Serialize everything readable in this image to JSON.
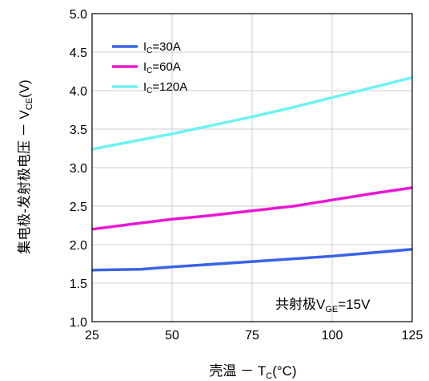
{
  "chart_data": {
    "type": "line",
    "xlabel": {
      "prefix": "壳温 －  T",
      "sub": "C",
      "suffix": "(°C)"
    },
    "ylabel": {
      "prefix": "集电极-发射极电压 －  V",
      "sub": "CE",
      "suffix": "(V)"
    },
    "annotation": {
      "prefix": "共射极V",
      "sub": "GE",
      "suffix": "=15V"
    },
    "xlim": [
      25,
      125
    ],
    "ylim": [
      1.0,
      5.0
    ],
    "xticks": [
      "25",
      "50",
      "75",
      "100",
      "125"
    ],
    "yticks": [
      "1.0",
      "1.5",
      "2.0",
      "2.5",
      "3.0",
      "3.5",
      "4.0",
      "4.5",
      "5.0"
    ],
    "grid": true,
    "legend_position": "top-left",
    "series": [
      {
        "name": {
          "prefix": "I",
          "sub": "C",
          "suffix": "=30A"
        },
        "color": "#3a64e6",
        "x": [
          25,
          40,
          50,
          75,
          100,
          125
        ],
        "y": [
          1.67,
          1.68,
          1.71,
          1.78,
          1.85,
          1.94
        ]
      },
      {
        "name": {
          "prefix": "I",
          "sub": "C",
          "suffix": "=60A"
        },
        "color": "#ea17d2",
        "x": [
          25,
          40,
          50,
          60,
          75,
          88,
          100,
          112,
          125
        ],
        "y": [
          2.2,
          2.28,
          2.33,
          2.37,
          2.44,
          2.5,
          2.58,
          2.66,
          2.74
        ]
      },
      {
        "name": {
          "prefix": "I",
          "sub": "C",
          "suffix": "=120A"
        },
        "color": "#6ef2f2",
        "x": [
          25,
          37.5,
          50,
          62.5,
          75,
          87.5,
          100,
          112.5,
          125
        ],
        "y": [
          3.24,
          3.34,
          3.44,
          3.55,
          3.66,
          3.78,
          3.91,
          4.04,
          4.17
        ]
      }
    ]
  }
}
